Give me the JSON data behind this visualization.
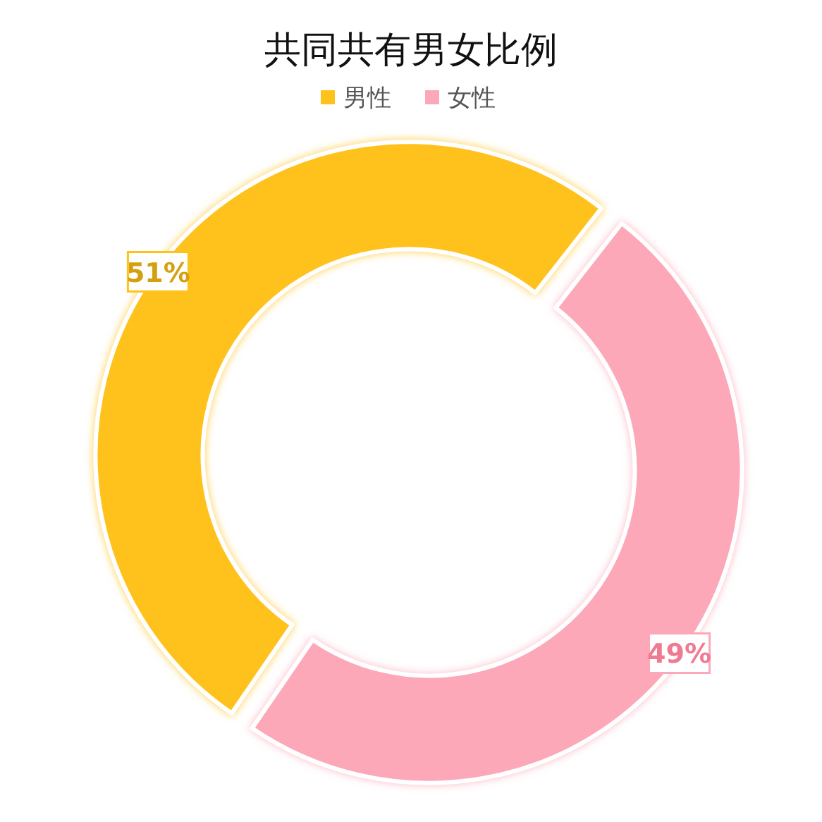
{
  "chart_data": {
    "type": "donut",
    "title": "共同共有男女比例",
    "categories": [
      "男性",
      "女性"
    ],
    "values": [
      51,
      49
    ],
    "value_labels": [
      "51%",
      "49%"
    ],
    "colors": [
      "#ffc21a",
      "#fca8b8"
    ],
    "legend": "top"
  }
}
